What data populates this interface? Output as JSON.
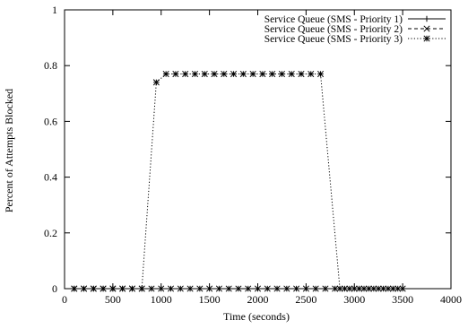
{
  "chart_data": {
    "type": "line",
    "title": "",
    "xlabel": "Time (seconds)",
    "ylabel": "Percent of Attempts Blocked",
    "xlim": [
      0,
      4000
    ],
    "ylim": [
      0,
      1
    ],
    "x_ticks": [
      0,
      500,
      1000,
      1500,
      2000,
      2500,
      3000,
      3500,
      4000
    ],
    "y_ticks": [
      0,
      0.2,
      0.4,
      0.6,
      0.8,
      1
    ],
    "x_tick_labels": [
      "0",
      "500",
      "1000",
      "1500",
      "2000",
      "2500",
      "3000",
      "3500",
      "4000"
    ],
    "y_tick_labels": [
      "0",
      "0.2",
      "0.4",
      "0.6",
      "0.8",
      "1"
    ],
    "grid": false,
    "legend_position": "top-right",
    "series": [
      {
        "name": "Service Queue (SMS - Priority 1)",
        "marker": "plus",
        "dash": "solid",
        "color": "#000000",
        "x": [
          100,
          200,
          300,
          400,
          500,
          600,
          700,
          800,
          900,
          1000,
          1100,
          1200,
          1300,
          1400,
          1500,
          1600,
          1700,
          1800,
          1900,
          2000,
          2100,
          2200,
          2300,
          2400,
          2500,
          2600,
          2700,
          2800,
          2900,
          3000,
          3100,
          3200,
          3300,
          3400,
          3500
        ],
        "y": [
          0,
          0,
          0,
          0,
          0,
          0,
          0,
          0,
          0,
          0,
          0,
          0,
          0,
          0,
          0,
          0,
          0,
          0,
          0,
          0,
          0,
          0,
          0,
          0,
          0,
          0,
          0,
          0,
          0,
          0,
          0,
          0,
          0,
          0,
          0
        ]
      },
      {
        "name": "Service Queue (SMS - Priority 2)",
        "marker": "cross",
        "dash": "dashed",
        "color": "#000000",
        "x": [
          100,
          200,
          300,
          400,
          500,
          600,
          700,
          800,
          900,
          1000,
          1100,
          1200,
          1300,
          1400,
          1500,
          1600,
          1700,
          1800,
          1900,
          2000,
          2100,
          2200,
          2300,
          2400,
          2500,
          2600,
          2700,
          2800,
          2900,
          3000,
          3100,
          3200,
          3300,
          3400,
          3500
        ],
        "y": [
          0,
          0,
          0,
          0,
          0,
          0,
          0,
          0,
          0,
          0,
          0,
          0,
          0,
          0,
          0,
          0,
          0,
          0,
          0,
          0,
          0,
          0,
          0,
          0,
          0,
          0,
          0,
          0,
          0,
          0,
          0,
          0,
          0,
          0,
          0
        ]
      },
      {
        "name": "Service Queue (SMS - Priority 3)",
        "marker": "star",
        "dash": "dotted",
        "color": "#000000",
        "x": [
          100,
          200,
          300,
          400,
          500,
          600,
          700,
          800,
          950,
          1050,
          1150,
          1250,
          1350,
          1450,
          1550,
          1650,
          1750,
          1850,
          1950,
          2050,
          2150,
          2250,
          2350,
          2450,
          2550,
          2650,
          2850,
          2950,
          3050,
          3150,
          3250,
          3350,
          3450
        ],
        "y": [
          0,
          0,
          0,
          0,
          0,
          0,
          0,
          0,
          0.74,
          0.77,
          0.77,
          0.77,
          0.77,
          0.77,
          0.77,
          0.77,
          0.77,
          0.77,
          0.77,
          0.77,
          0.77,
          0.77,
          0.77,
          0.77,
          0.77,
          0.77,
          0,
          0,
          0,
          0,
          0,
          0,
          0
        ]
      }
    ]
  }
}
